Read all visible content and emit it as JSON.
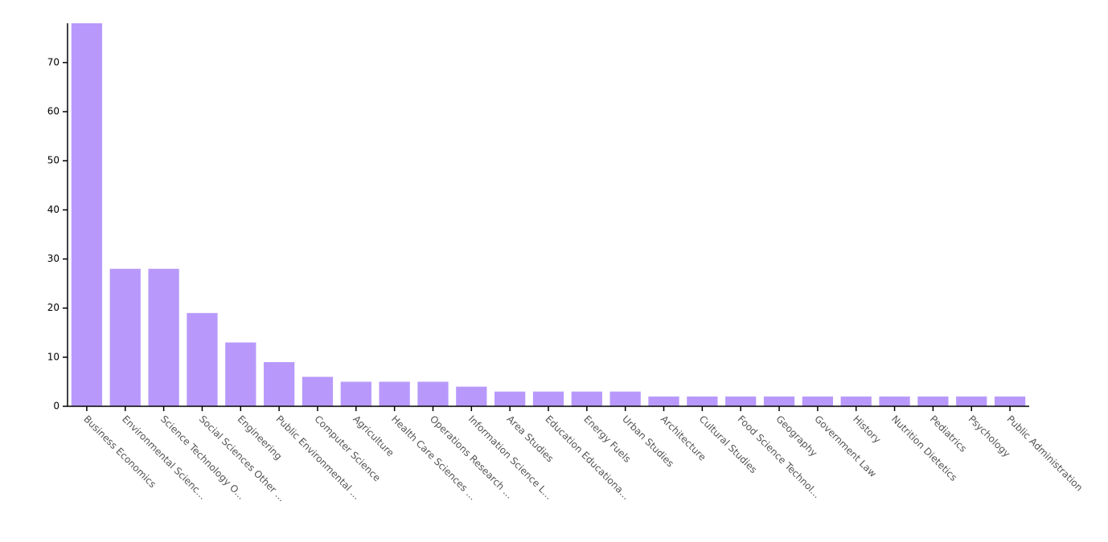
{
  "chart_data": {
    "type": "bar",
    "title": "",
    "xlabel": "",
    "ylabel": "",
    "ylim": [
      0,
      78
    ],
    "yticks": [
      0,
      10,
      20,
      30,
      40,
      50,
      60,
      70
    ],
    "grid": false,
    "bar_color": "#b899fb",
    "categories": [
      "Business Economics",
      "Environmental Scienc...",
      "Science Technology O...",
      "Social Sciences Other ...",
      "Engineering",
      "Public Environmental ...",
      "Computer Science",
      "Agriculture",
      "Health Care Sciences ...",
      "Operations Research ...",
      "Information Science L...",
      "Area Studies",
      "Education Educationa...",
      "Energy Fuels",
      "Urban Studies",
      "Architecture",
      "Cultural Studies",
      "Food Science Technol...",
      "Geography",
      "Government Law",
      "History",
      "Nutrition Dietetics",
      "Pediatrics",
      "Psychology",
      "Public Administration"
    ],
    "values": [
      78,
      28,
      28,
      19,
      13,
      9,
      6,
      5,
      5,
      5,
      4,
      3,
      3,
      3,
      3,
      2,
      2,
      2,
      2,
      2,
      2,
      2,
      2,
      2,
      2
    ]
  }
}
